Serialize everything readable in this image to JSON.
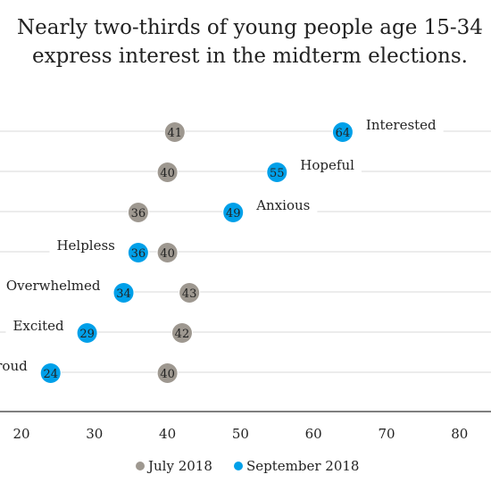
{
  "chart_data": {
    "type": "scatter",
    "title": "Nearly two-thirds of young people age 15-34 express interest in the midterm elections.",
    "title_lines": [
      "Nearly two-thirds of young people age 15-34",
      "express interest in the midterm elections."
    ],
    "categories": [
      "Interested",
      "Hopeful",
      "Anxious",
      "Helpless",
      "Overwhelmed",
      "Excited",
      "Proud"
    ],
    "series": [
      {
        "name": "July 2018",
        "color": "#9e9890",
        "values": [
          41,
          40,
          36,
          40,
          43,
          42,
          40
        ]
      },
      {
        "name": "September 2018",
        "color": "#00a0e9",
        "values": [
          64,
          55,
          49,
          36,
          34,
          29,
          24
        ]
      }
    ],
    "xlim": [
      15,
      85
    ],
    "xticks": [
      20,
      30,
      40,
      50,
      60,
      70,
      80
    ],
    "legend": "bottom-center",
    "grid": false
  }
}
